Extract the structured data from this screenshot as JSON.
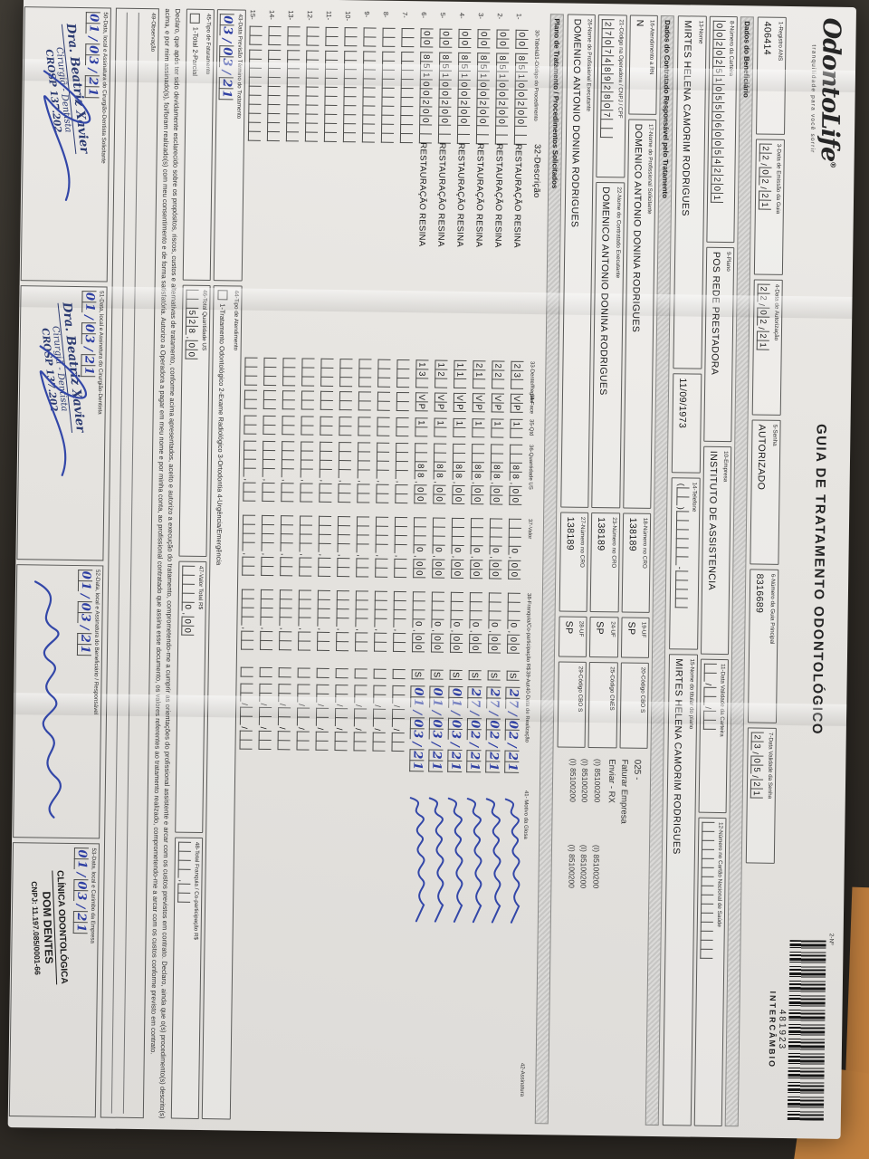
{
  "colors": {
    "paper": "#eae8e4",
    "background": "#332f29",
    "accent_strip": "#bf7e3e",
    "hand_ink": "#2e3fa3",
    "print_ink": "#2c2c2c"
  },
  "header": {
    "logo_text": "OdontoLife",
    "logo_reg": "®",
    "tagline": "tranquilidade para você sorrir",
    "title": "GUIA DE TRATAMENTO ODONTOLÓGICO",
    "via_label": "2-Nº",
    "barcode_number": "481923",
    "barcode_caption": "INTERCÂMBIO"
  },
  "top_fields": {
    "f1": {
      "label": "1-Registro ANS",
      "value": "406414"
    },
    "f3": {
      "label": "3-Data de Emissão da Guia",
      "cells": "22/02/21"
    },
    "f4": {
      "label": "4-Data de Autorização",
      "cells": "22/02/21"
    },
    "f5": {
      "label": "5-Senha",
      "value": "AUTORIZADO"
    },
    "f6": {
      "label": "6-Número da Guia Principal",
      "value": "8316689"
    },
    "f7": {
      "label": "7-Data Validade da Senha",
      "cells": "23/05/21"
    }
  },
  "sections": {
    "beneficiario": "Dados do Beneficiário",
    "contratado": "Dados do Contratado Responsável pelo Tratamento",
    "plano": "Plano de Tratamento / Procedimentos Solicitados"
  },
  "beneficiario": {
    "f8": {
      "label": "8-Número da Carteira",
      "cells": "00202510550600542201"
    },
    "f9": {
      "label": "9-Plano",
      "value": "POS REDE PRESTADORA"
    },
    "f10": {
      "label": "10-Empresa",
      "value": "INSTITUTO DE ASSISTENCIA"
    },
    "f11": {
      "label": "11-Data Validade da Carteira",
      "cells": "  /  /  "
    },
    "f12": {
      "label": "12-Número no Cartão Nacional de Saúde",
      "cells": "               "
    },
    "f13": {
      "label": "13-Nome",
      "value": "MIRTES HELENA CAMORIM RODRIGUES"
    },
    "birth": {
      "label": "",
      "value": "11/09/1973"
    },
    "f14": {
      "label": "14-Telefone",
      "cells": "(  )      -    "
    },
    "f15": {
      "label": "15-Nome do titular do plano",
      "value": "MIRTES HELENA CAMORIM RODRIGUES"
    }
  },
  "contratado": {
    "f16": {
      "label": "16-Atendimento a RN",
      "value": "N"
    },
    "f17": {
      "label": "17-Nome do Profissional Solicitante",
      "value": "DOMENICO ANTONIO DONINA RODRIGUES"
    },
    "f18": {
      "label": "18-Número no CRO",
      "value": "138189"
    },
    "f19": {
      "label": "19-UF",
      "value": "SP"
    },
    "f20": {
      "label": "20-Código CBO S",
      "value": ""
    },
    "f21": {
      "label": "21-Código na Operadora / CNPJ / CPF",
      "cells": "27074892807  "
    },
    "f22": {
      "label": "22-Nome do Contratado Executante",
      "value": "DOMENICO ANTONIO DONINA RODRIGUES"
    },
    "f23": {
      "label": "23-Número no CRO",
      "value": "138189"
    },
    "f24": {
      "label": "24-UF",
      "value": "SP"
    },
    "f25": {
      "label": "25-Código CNES",
      "value": ""
    },
    "f26": {
      "label": "26-Nome do Profissional Executante",
      "value": "DOMENICO ANTONIO DONINA RODRIGUES"
    },
    "f27": {
      "label": "27-Número no CRO",
      "value": "138189"
    },
    "f28": {
      "label": "28-UF",
      "value": "SP"
    },
    "f29": {
      "label": "29-Código CBO S",
      "value": ""
    },
    "annotations": {
      "code": "025 -",
      "line1": "Faturar Empresa",
      "line2": "Enviar - RX",
      "cbo_codes": [
        "(I) 85100200",
        "(I) 85100200",
        "(I) 85100200",
        "(I) 85100200",
        "(I) 85100200",
        "(I) 85100200"
      ]
    }
  },
  "table": {
    "headers": {
      "h30": "30-Tabela",
      "h31": "31-Código do Procedimento",
      "h32": "32-Descrição",
      "h33": "33-Dente/Região",
      "h34": "34-Face",
      "h35": "35-Qtd",
      "h36": "36-Quantidade US",
      "h37": "37-Valor",
      "h38": "38-Franquia/Co-participação R$",
      "h39": "39-Aut",
      "h40": "40-Data de Realização",
      "h41": "41- Motivo da Glosa",
      "h42": "42-Assinatura"
    },
    "rows": [
      {
        "n": "1-",
        "tab": "00",
        "code": "85100200  ",
        "desc": "RESTAURAÇÃO RESINA",
        "tooth": "23 ",
        "face": "VP",
        "qty": "1 ",
        "us": "  88,00",
        "val": "   0,00",
        "fra": "   0,00",
        "aut": "S",
        "date": "27/02/21",
        "filled": true
      },
      {
        "n": "2-",
        "tab": "00",
        "code": "85100200  ",
        "desc": "RESTAURAÇÃO RESINA",
        "tooth": "22 ",
        "face": "VP",
        "qty": "1 ",
        "us": "  88,00",
        "val": "   0,00",
        "fra": "   0,00",
        "aut": "S",
        "date": "27/02/21",
        "filled": true
      },
      {
        "n": "3-",
        "tab": "00",
        "code": "85100200  ",
        "desc": "RESTAURAÇÃO RESINA",
        "tooth": "21 ",
        "face": "VP",
        "qty": "1 ",
        "us": "  88,00",
        "val": "   0,00",
        "fra": "   0,00",
        "aut": "S",
        "date": "27/02/21",
        "filled": true
      },
      {
        "n": "4-",
        "tab": "00",
        "code": "85100200  ",
        "desc": "RESTAURAÇÃO RESINA",
        "tooth": "11 ",
        "face": "VP",
        "qty": "1 ",
        "us": "  88,00",
        "val": "   0,00",
        "fra": "   0,00",
        "aut": "S",
        "date": "01/03/21",
        "filled": true
      },
      {
        "n": "5-",
        "tab": "00",
        "code": "85100200  ",
        "desc": "RESTAURAÇÃO RESINA",
        "tooth": "12 ",
        "face": "VP",
        "qty": "1 ",
        "us": "  88,00",
        "val": "   0,00",
        "fra": "   0,00",
        "aut": "S",
        "date": "01/03/21",
        "filled": true
      },
      {
        "n": "6-",
        "tab": "00",
        "code": "85100200  ",
        "desc": "RESTAURAÇÃO RESINA",
        "tooth": "13 ",
        "face": "VP",
        "qty": "1 ",
        "us": "  88,00",
        "val": "   0,00",
        "fra": "   0,00",
        "aut": "S",
        "date": "01/03/21",
        "filled": true
      },
      {
        "n": "7-",
        "tab": "  ",
        "code": "          ",
        "desc": "",
        "tooth": "   ",
        "face": "  ",
        "qty": "  ",
        "us": "    ,  ",
        "val": "    ,  ",
        "fra": "    ,  ",
        "aut": " ",
        "date": "  /  /  ",
        "filled": false
      },
      {
        "n": "8-",
        "tab": "  ",
        "code": "          ",
        "desc": "",
        "tooth": "   ",
        "face": "  ",
        "qty": "  ",
        "us": "    ,  ",
        "val": "    ,  ",
        "fra": "    ,  ",
        "aut": " ",
        "date": "  /  /  ",
        "filled": false
      },
      {
        "n": "9-",
        "tab": "  ",
        "code": "          ",
        "desc": "",
        "tooth": "   ",
        "face": "  ",
        "qty": "  ",
        "us": "    ,  ",
        "val": "    ,  ",
        "fra": "    ,  ",
        "aut": " ",
        "date": "  /  /  ",
        "filled": false
      },
      {
        "n": "10-",
        "tab": "  ",
        "code": "          ",
        "desc": "",
        "tooth": "   ",
        "face": "  ",
        "qty": "  ",
        "us": "    ,  ",
        "val": "    ,  ",
        "fra": "    ,  ",
        "aut": " ",
        "date": "  /  /  ",
        "filled": false
      },
      {
        "n": "11-",
        "tab": "  ",
        "code": "          ",
        "desc": "",
        "tooth": "   ",
        "face": "  ",
        "qty": "  ",
        "us": "    ,  ",
        "val": "    ,  ",
        "fra": "    ,  ",
        "aut": " ",
        "date": "  /  /  ",
        "filled": false
      },
      {
        "n": "12-",
        "tab": "  ",
        "code": "          ",
        "desc": "",
        "tooth": "   ",
        "face": "  ",
        "qty": "  ",
        "us": "    ,  ",
        "val": "    ,  ",
        "fra": "    ,  ",
        "aut": " ",
        "date": "  /  /  ",
        "filled": false
      },
      {
        "n": "13-",
        "tab": "  ",
        "code": "          ",
        "desc": "",
        "tooth": "   ",
        "face": "  ",
        "qty": "  ",
        "us": "    ,  ",
        "val": "    ,  ",
        "fra": "    ,  ",
        "aut": " ",
        "date": "  /  /  ",
        "filled": false
      },
      {
        "n": "14-",
        "tab": "  ",
        "code": "          ",
        "desc": "",
        "tooth": "   ",
        "face": "  ",
        "qty": "  ",
        "us": "    ,  ",
        "val": "    ,  ",
        "fra": "    ,  ",
        "aut": " ",
        "date": "  /  /  ",
        "filled": false
      },
      {
        "n": "15-",
        "tab": "  ",
        "code": "          ",
        "desc": "",
        "tooth": "   ",
        "face": "  ",
        "qty": "  ",
        "us": "    ,  ",
        "val": "    ,  ",
        "fra": "    ,  ",
        "aut": " ",
        "date": "  /  /  ",
        "filled": false
      }
    ]
  },
  "totals": {
    "f43": {
      "label": "43-Data Previsão Término do Tratamento",
      "cells": "03/03/21"
    },
    "f44": {
      "label": "44-Tipo de Atendimento",
      "options": "1-Tratamento Odontológico   2-Exame Radiológico   3-Ortodontia   4-Urgência/Emergência"
    },
    "f45": {
      "label": "45-Tipo de Faturamento",
      "options": "1-Total   2-Parcial"
    },
    "f46": {
      "label": "46-Total Quantidade US",
      "cells": "  528,00"
    },
    "f47": {
      "label": "47-Valor Total R$",
      "cells": "    0,00"
    },
    "f48": {
      "label": "48-Total Franquia / Co-participação R$",
      "cells": "    ,  "
    }
  },
  "declaration": "Declaro, que após ter sido devidamente esclarecido sobre os propósitos, riscos, custos e alternativas de tratamento, conforme acima apresentados, aceito e autorizo a execução do tratamento, comprometendo-me a cumprir as orientações do profissional assistente e arcar com os custos previstos em contrato. Declaro, ainda que o(s) procedimento(s) descrito(s) acima, e por mim assinado(s), foi/foram realizado(s) com meu consentimento e de forma satisfatória. Autorizo a Operadora a pagar em meu nome e por minha conta, ao profissional contratado que assina esse documento, os valores referentes ao tratamento realizado, comprometendo-me a arcar com os custos conforme previsto em contrato.",
  "observacao": {
    "label": "49-Observação"
  },
  "signatures": {
    "s50": {
      "label": "50-Data, local e Assinatura do Cirurgião-Dentista Solicitante",
      "date": "01/03/21"
    },
    "s51": {
      "label": "51-Data, local e Assinatura do Cirurgião-Dentista",
      "date": "01/03/21"
    },
    "s52": {
      "label": "52-Data, local e Assinatura do Beneficiário / Responsável",
      "date": "01/03/21"
    },
    "s53": {
      "label": "53-Data, local e Carimbo da Empresa",
      "date": "01/03/21"
    }
  },
  "stamps": {
    "dentist": {
      "line1": "Dra. Beatriz Xavier",
      "line2": "Cirurgiã - Dentista",
      "line3": "CROSP 137.202"
    },
    "clinic": {
      "line1": "CLÍNICA ODONTOLÓGICA",
      "line2": "DOM DENTES",
      "line3": "CNPJ: 11.197.085/0001-66"
    }
  }
}
